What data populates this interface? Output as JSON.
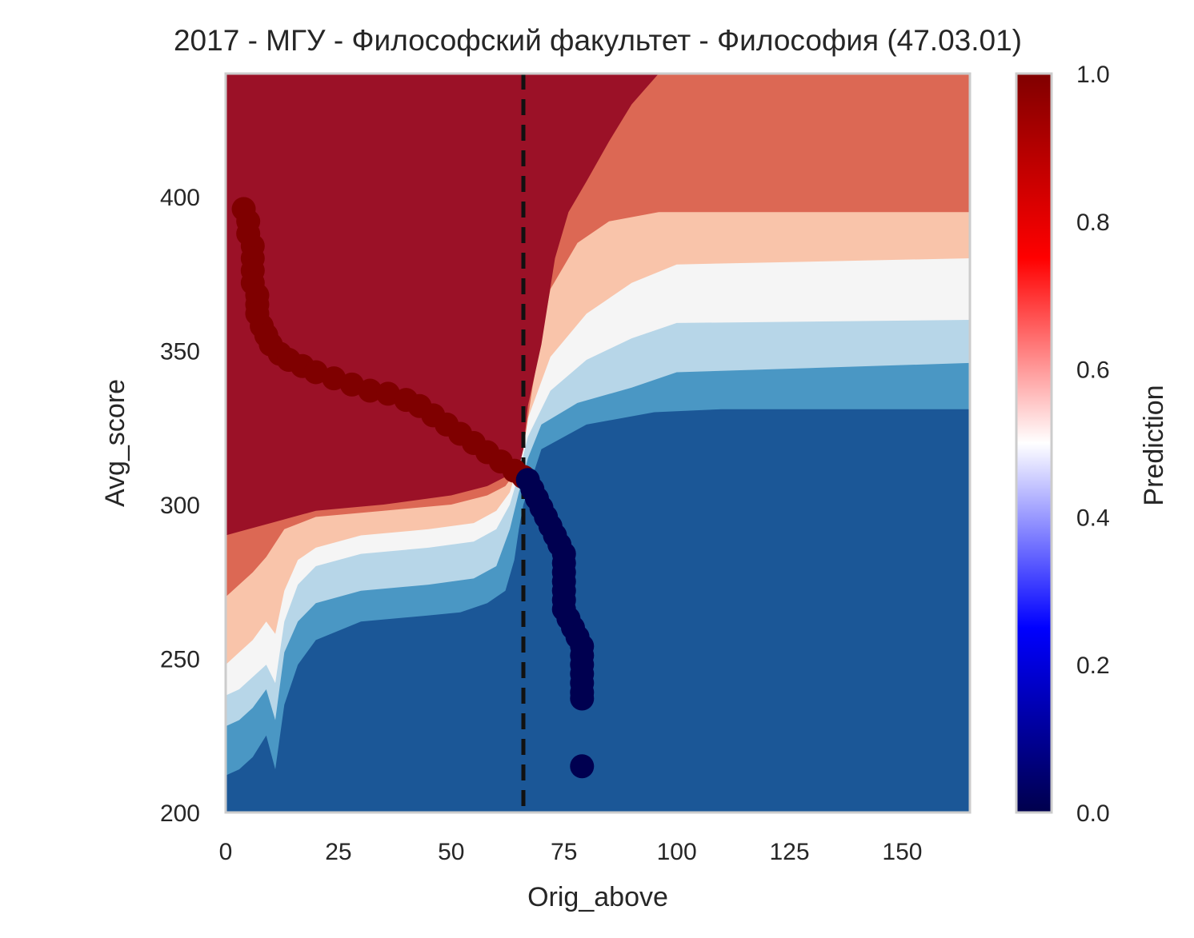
{
  "chart_data": {
    "type": "heatmap",
    "title": "2017 - МГУ - Философский факультет - Философия (47.03.01)",
    "xlabel": "Orig_above",
    "ylabel": "Avg_score",
    "xlim": [
      0,
      165
    ],
    "ylim": [
      200,
      440
    ],
    "xticks": [
      0,
      25,
      50,
      75,
      100,
      125,
      150
    ],
    "yticks": [
      200,
      250,
      300,
      350,
      400
    ],
    "grid": false,
    "colormap": "seismic",
    "colorbar": {
      "label": "Prediction",
      "range": [
        0,
        1
      ],
      "ticks": [
        "0.0",
        "0.2",
        "0.4",
        "0.6",
        "0.8",
        "1.0"
      ]
    },
    "contour_levels": [
      {
        "min": 0.0,
        "max": 0.1,
        "color": "#1b5797"
      },
      {
        "min": 0.1,
        "max": 0.2,
        "color": "#4a97c4"
      },
      {
        "min": 0.2,
        "max": 0.4,
        "color": "#b7d6e8"
      },
      {
        "min": 0.4,
        "max": 0.6,
        "color": "#f5f5f5"
      },
      {
        "min": 0.6,
        "max": 0.8,
        "color": "#f9c4aa"
      },
      {
        "min": 0.8,
        "max": 0.9,
        "color": "#dc6854"
      },
      {
        "min": 0.9,
        "max": 1.0,
        "color": "#9b1127"
      }
    ],
    "vline": {
      "x": 66,
      "style": "dashed",
      "color": "#111111"
    },
    "series": [
      {
        "color": "#7f0000",
        "points": [
          [
            4,
            396
          ],
          [
            5,
            392
          ],
          [
            5,
            388
          ],
          [
            6,
            384
          ],
          [
            6,
            380
          ],
          [
            6,
            376
          ],
          [
            6,
            372
          ],
          [
            7,
            368
          ],
          [
            7,
            365
          ],
          [
            7,
            362
          ],
          [
            8,
            358
          ],
          [
            9,
            355
          ],
          [
            10,
            352
          ],
          [
            12,
            349
          ],
          [
            14,
            347
          ],
          [
            17,
            345
          ],
          [
            20,
            343
          ],
          [
            24,
            341
          ],
          [
            28,
            339
          ],
          [
            32,
            337
          ],
          [
            36,
            336
          ],
          [
            40,
            334
          ],
          [
            43,
            332
          ],
          [
            46,
            329
          ],
          [
            49,
            326
          ],
          [
            52,
            323
          ],
          [
            55,
            320
          ],
          [
            58,
            317
          ],
          [
            61,
            314
          ],
          [
            64,
            311
          ],
          [
            66,
            309
          ]
        ]
      },
      {
        "color": "#000050",
        "points": [
          [
            67,
            308
          ],
          [
            68,
            305
          ],
          [
            69,
            302
          ],
          [
            70,
            299
          ],
          [
            71,
            296
          ],
          [
            72,
            293
          ],
          [
            73,
            290
          ],
          [
            74,
            287
          ],
          [
            75,
            284
          ],
          [
            75,
            281
          ],
          [
            75,
            278
          ],
          [
            75,
            275
          ],
          [
            75,
            272
          ],
          [
            75,
            269
          ],
          [
            75,
            266
          ],
          [
            76,
            263
          ],
          [
            77,
            260
          ],
          [
            78,
            257
          ],
          [
            79,
            254
          ],
          [
            79,
            251
          ],
          [
            79,
            248
          ],
          [
            79,
            245
          ],
          [
            79,
            242
          ],
          [
            79,
            239
          ],
          [
            79,
            237
          ],
          [
            79,
            215
          ]
        ]
      }
    ]
  }
}
